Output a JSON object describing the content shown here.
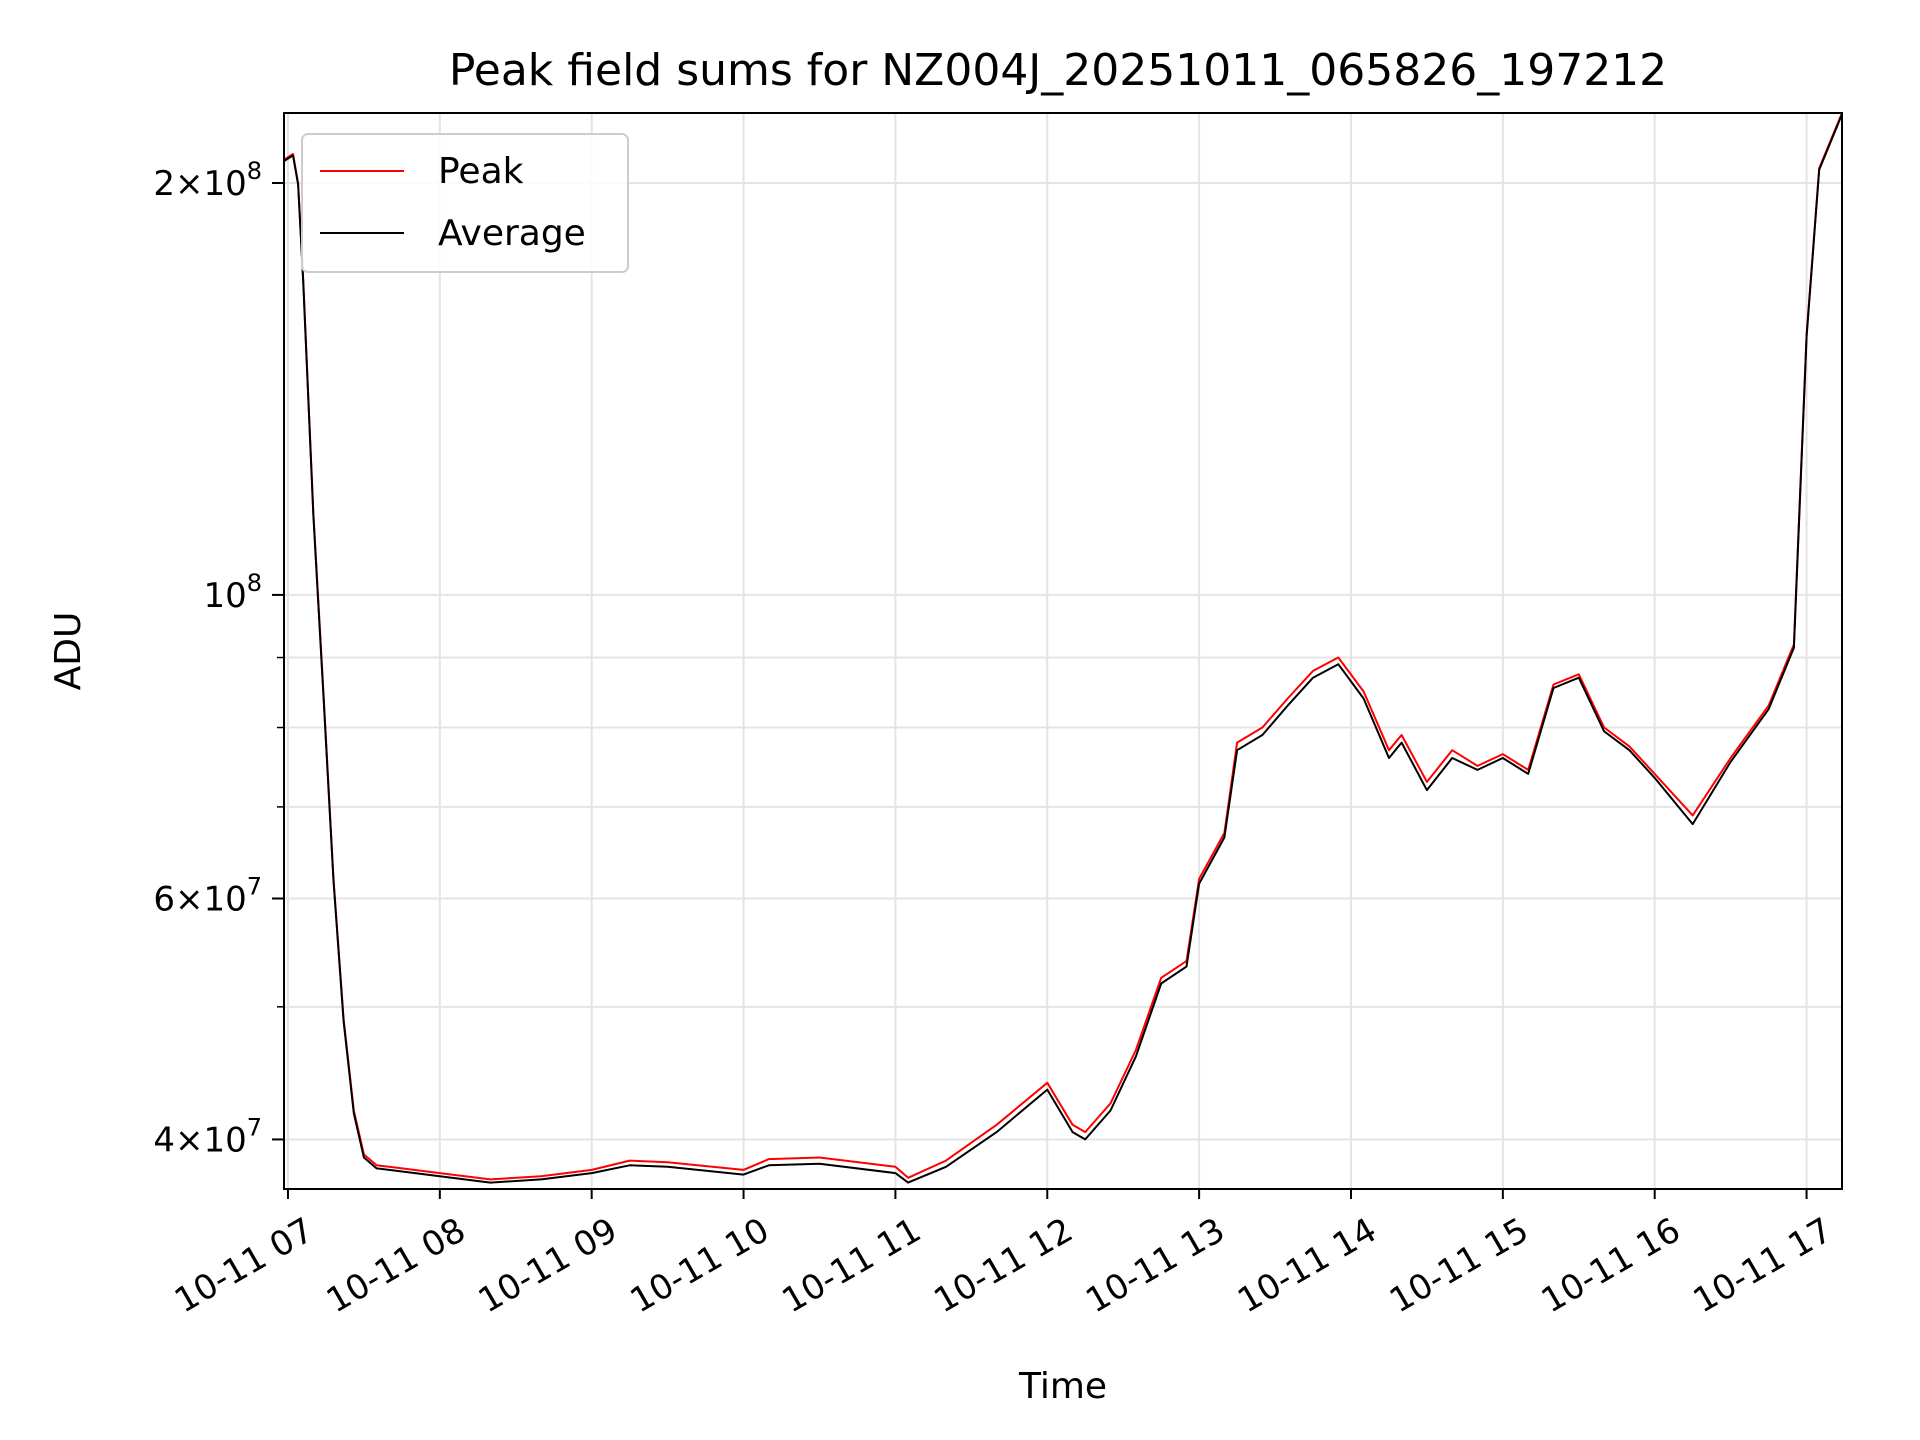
{
  "chart_data": {
    "type": "line",
    "title": "Peak field sums for NZ004J_20251011_065826_197212",
    "xlabel": "Time",
    "ylabel": "ADU",
    "yscale": "log",
    "grid": true,
    "legend_position": "upper-left",
    "xlim": [
      "2025-10-11T06:58:26",
      "2025-10-11T17:14:00"
    ],
    "ylim": [
      36800000,
      225000000
    ],
    "x_ticks": [
      {
        "t": "2025-10-11T07:00",
        "label": "10-11 07"
      },
      {
        "t": "2025-10-11T08:00",
        "label": "10-11 08"
      },
      {
        "t": "2025-10-11T09:00",
        "label": "10-11 09"
      },
      {
        "t": "2025-10-11T10:00",
        "label": "10-11 10"
      },
      {
        "t": "2025-10-11T11:00",
        "label": "10-11 11"
      },
      {
        "t": "2025-10-11T12:00",
        "label": "10-11 12"
      },
      {
        "t": "2025-10-11T13:00",
        "label": "10-11 13"
      },
      {
        "t": "2025-10-11T14:00",
        "label": "10-11 14"
      },
      {
        "t": "2025-10-11T15:00",
        "label": "10-11 15"
      },
      {
        "t": "2025-10-11T16:00",
        "label": "10-11 16"
      },
      {
        "t": "2025-10-11T17:00",
        "label": "10-11 17"
      }
    ],
    "y_major_ticks": [
      {
        "value": 40000000,
        "mantissa": "4",
        "base": "10",
        "exp": "7"
      },
      {
        "value": 60000000,
        "mantissa": "6",
        "base": "10",
        "exp": "7"
      },
      {
        "value": 100000000,
        "mantissa": "",
        "base": "10",
        "exp": "8"
      },
      {
        "value": 200000000,
        "mantissa": "2",
        "base": "10",
        "exp": "8"
      }
    ],
    "y_gridlines": [
      40000000,
      50000000,
      60000000,
      70000000,
      80000000,
      90000000,
      100000000,
      200000000
    ],
    "y_minor_ticks": [
      50000000,
      70000000,
      80000000,
      90000000
    ],
    "series": [
      {
        "name": "Peak",
        "color": "#ff0000",
        "x": [
          "2025-10-11T06:58:26",
          "2025-10-11T07:02",
          "2025-10-11T07:04",
          "2025-10-11T07:06",
          "2025-10-11T07:10",
          "2025-10-11T07:14",
          "2025-10-11T07:18",
          "2025-10-11T07:22",
          "2025-10-11T07:26",
          "2025-10-11T07:30",
          "2025-10-11T07:35",
          "2025-10-11T07:40",
          "2025-10-11T08:00",
          "2025-10-11T08:20",
          "2025-10-11T08:40",
          "2025-10-11T09:00",
          "2025-10-11T09:15",
          "2025-10-11T09:30",
          "2025-10-11T10:00",
          "2025-10-11T10:10",
          "2025-10-11T10:30",
          "2025-10-11T11:00",
          "2025-10-11T11:05",
          "2025-10-11T11:20",
          "2025-10-11T11:40",
          "2025-10-11T12:00",
          "2025-10-11T12:10",
          "2025-10-11T12:15",
          "2025-10-11T12:25",
          "2025-10-11T12:35",
          "2025-10-11T12:45",
          "2025-10-11T12:55",
          "2025-10-11T13:00",
          "2025-10-11T13:10",
          "2025-10-11T13:15",
          "2025-10-11T13:25",
          "2025-10-11T13:35",
          "2025-10-11T13:45",
          "2025-10-11T13:55",
          "2025-10-11T14:05",
          "2025-10-11T14:15",
          "2025-10-11T14:20",
          "2025-10-11T14:30",
          "2025-10-11T14:40",
          "2025-10-11T14:50",
          "2025-10-11T15:00",
          "2025-10-11T15:10",
          "2025-10-11T15:20",
          "2025-10-11T15:30",
          "2025-10-11T15:40",
          "2025-10-11T15:50",
          "2025-10-11T16:00",
          "2025-10-11T16:15",
          "2025-10-11T16:30",
          "2025-10-11T16:45",
          "2025-10-11T16:55",
          "2025-10-11T17:00",
          "2025-10-11T17:05",
          "2025-10-11T17:14"
        ],
        "y": [
          208000000,
          210000000,
          200000000,
          170000000,
          115000000,
          85000000,
          62000000,
          49000000,
          42000000,
          39000000,
          38300000,
          38200000,
          37800000,
          37400000,
          37600000,
          38000000,
          38600000,
          38500000,
          38000000,
          38700000,
          38800000,
          38200000,
          37500000,
          38600000,
          41000000,
          44000000,
          41000000,
          40500000,
          42500000,
          46500000,
          52500000,
          54000000,
          62000000,
          67000000,
          78000000,
          80000000,
          84000000,
          88000000,
          90000000,
          85000000,
          77000000,
          79000000,
          73000000,
          77000000,
          75000000,
          76500000,
          74500000,
          86000000,
          87500000,
          80000000,
          77500000,
          74000000,
          69000000,
          76000000,
          83000000,
          92000000,
          155000000,
          205000000,
          225000000
        ]
      },
      {
        "name": "Average",
        "color": "#000000",
        "x": [
          "2025-10-11T06:58:26",
          "2025-10-11T07:02",
          "2025-10-11T07:04",
          "2025-10-11T07:06",
          "2025-10-11T07:10",
          "2025-10-11T07:14",
          "2025-10-11T07:18",
          "2025-10-11T07:22",
          "2025-10-11T07:26",
          "2025-10-11T07:30",
          "2025-10-11T07:35",
          "2025-10-11T07:40",
          "2025-10-11T08:00",
          "2025-10-11T08:20",
          "2025-10-11T08:40",
          "2025-10-11T09:00",
          "2025-10-11T09:15",
          "2025-10-11T09:30",
          "2025-10-11T10:00",
          "2025-10-11T10:10",
          "2025-10-11T10:30",
          "2025-10-11T11:00",
          "2025-10-11T11:05",
          "2025-10-11T11:20",
          "2025-10-11T11:40",
          "2025-10-11T12:00",
          "2025-10-11T12:10",
          "2025-10-11T12:15",
          "2025-10-11T12:25",
          "2025-10-11T12:35",
          "2025-10-11T12:45",
          "2025-10-11T12:55",
          "2025-10-11T13:00",
          "2025-10-11T13:10",
          "2025-10-11T13:15",
          "2025-10-11T13:25",
          "2025-10-11T13:35",
          "2025-10-11T13:45",
          "2025-10-11T13:55",
          "2025-10-11T14:05",
          "2025-10-11T14:15",
          "2025-10-11T14:20",
          "2025-10-11T14:30",
          "2025-10-11T14:40",
          "2025-10-11T14:50",
          "2025-10-11T15:00",
          "2025-10-11T15:10",
          "2025-10-11T15:20",
          "2025-10-11T15:30",
          "2025-10-11T15:40",
          "2025-10-11T15:50",
          "2025-10-11T16:00",
          "2025-10-11T16:15",
          "2025-10-11T16:30",
          "2025-10-11T16:45",
          "2025-10-11T16:55",
          "2025-10-11T17:00",
          "2025-10-11T17:05",
          "2025-10-11T17:14"
        ],
        "y": [
          207500000,
          209500000,
          199500000,
          169500000,
          114500000,
          84500000,
          61800000,
          48800000,
          41800000,
          38800000,
          38100000,
          38000000,
          37600000,
          37200000,
          37400000,
          37800000,
          38300000,
          38200000,
          37700000,
          38300000,
          38400000,
          37800000,
          37200000,
          38200000,
          40500000,
          43500000,
          40500000,
          40000000,
          42000000,
          46000000,
          52000000,
          53500000,
          61500000,
          66500000,
          77000000,
          79000000,
          83000000,
          87000000,
          89000000,
          84000000,
          76000000,
          78000000,
          72000000,
          76000000,
          74500000,
          76000000,
          74000000,
          85500000,
          87000000,
          79500000,
          77000000,
          73500000,
          68000000,
          75500000,
          82500000,
          91500000,
          154500000,
          204500000,
          224500000
        ]
      }
    ]
  }
}
